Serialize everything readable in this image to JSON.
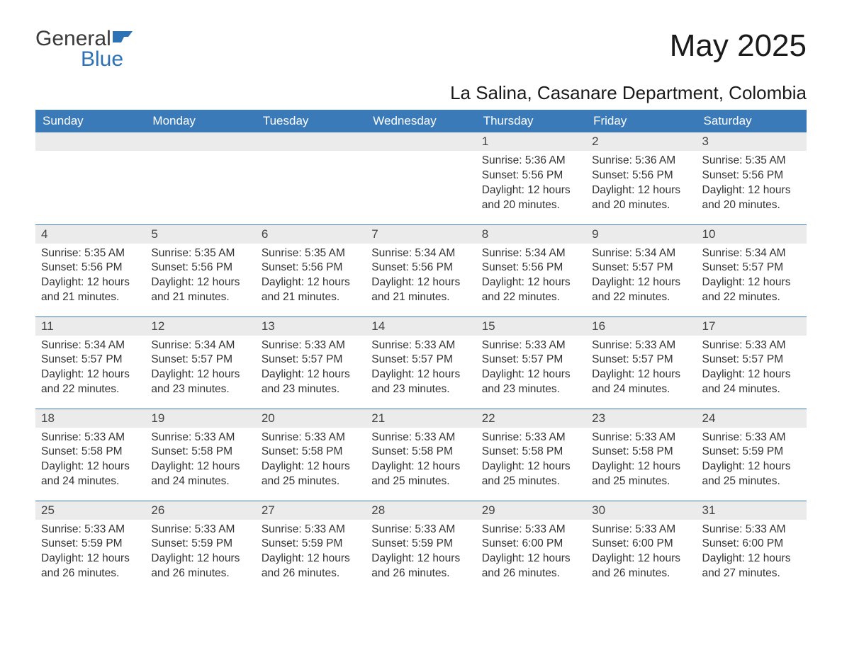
{
  "brand": {
    "word1": "General",
    "word2": "Blue"
  },
  "title": "May 2025",
  "location": "La Salina, Casanare Department, Colombia",
  "colors": {
    "header_bg": "#3a7ab8",
    "header_text": "#ffffff",
    "daynum_bg": "#ebebeb",
    "row_border": "#3a7ab8",
    "body_text": "#333333",
    "brand_gray": "#3a3a3a",
    "brand_blue": "#2d72b5",
    "background": "#ffffff"
  },
  "weekdays": [
    "Sunday",
    "Monday",
    "Tuesday",
    "Wednesday",
    "Thursday",
    "Friday",
    "Saturday"
  ],
  "weeks": [
    [
      null,
      null,
      null,
      null,
      {
        "n": "1",
        "sr": "5:36 AM",
        "ss": "5:56 PM",
        "dl": "12 hours and 20 minutes."
      },
      {
        "n": "2",
        "sr": "5:36 AM",
        "ss": "5:56 PM",
        "dl": "12 hours and 20 minutes."
      },
      {
        "n": "3",
        "sr": "5:35 AM",
        "ss": "5:56 PM",
        "dl": "12 hours and 20 minutes."
      }
    ],
    [
      {
        "n": "4",
        "sr": "5:35 AM",
        "ss": "5:56 PM",
        "dl": "12 hours and 21 minutes."
      },
      {
        "n": "5",
        "sr": "5:35 AM",
        "ss": "5:56 PM",
        "dl": "12 hours and 21 minutes."
      },
      {
        "n": "6",
        "sr": "5:35 AM",
        "ss": "5:56 PM",
        "dl": "12 hours and 21 minutes."
      },
      {
        "n": "7",
        "sr": "5:34 AM",
        "ss": "5:56 PM",
        "dl": "12 hours and 21 minutes."
      },
      {
        "n": "8",
        "sr": "5:34 AM",
        "ss": "5:56 PM",
        "dl": "12 hours and 22 minutes."
      },
      {
        "n": "9",
        "sr": "5:34 AM",
        "ss": "5:57 PM",
        "dl": "12 hours and 22 minutes."
      },
      {
        "n": "10",
        "sr": "5:34 AM",
        "ss": "5:57 PM",
        "dl": "12 hours and 22 minutes."
      }
    ],
    [
      {
        "n": "11",
        "sr": "5:34 AM",
        "ss": "5:57 PM",
        "dl": "12 hours and 22 minutes."
      },
      {
        "n": "12",
        "sr": "5:34 AM",
        "ss": "5:57 PM",
        "dl": "12 hours and 23 minutes."
      },
      {
        "n": "13",
        "sr": "5:33 AM",
        "ss": "5:57 PM",
        "dl": "12 hours and 23 minutes."
      },
      {
        "n": "14",
        "sr": "5:33 AM",
        "ss": "5:57 PM",
        "dl": "12 hours and 23 minutes."
      },
      {
        "n": "15",
        "sr": "5:33 AM",
        "ss": "5:57 PM",
        "dl": "12 hours and 23 minutes."
      },
      {
        "n": "16",
        "sr": "5:33 AM",
        "ss": "5:57 PM",
        "dl": "12 hours and 24 minutes."
      },
      {
        "n": "17",
        "sr": "5:33 AM",
        "ss": "5:57 PM",
        "dl": "12 hours and 24 minutes."
      }
    ],
    [
      {
        "n": "18",
        "sr": "5:33 AM",
        "ss": "5:58 PM",
        "dl": "12 hours and 24 minutes."
      },
      {
        "n": "19",
        "sr": "5:33 AM",
        "ss": "5:58 PM",
        "dl": "12 hours and 24 minutes."
      },
      {
        "n": "20",
        "sr": "5:33 AM",
        "ss": "5:58 PM",
        "dl": "12 hours and 25 minutes."
      },
      {
        "n": "21",
        "sr": "5:33 AM",
        "ss": "5:58 PM",
        "dl": "12 hours and 25 minutes."
      },
      {
        "n": "22",
        "sr": "5:33 AM",
        "ss": "5:58 PM",
        "dl": "12 hours and 25 minutes."
      },
      {
        "n": "23",
        "sr": "5:33 AM",
        "ss": "5:58 PM",
        "dl": "12 hours and 25 minutes."
      },
      {
        "n": "24",
        "sr": "5:33 AM",
        "ss": "5:59 PM",
        "dl": "12 hours and 25 minutes."
      }
    ],
    [
      {
        "n": "25",
        "sr": "5:33 AM",
        "ss": "5:59 PM",
        "dl": "12 hours and 26 minutes."
      },
      {
        "n": "26",
        "sr": "5:33 AM",
        "ss": "5:59 PM",
        "dl": "12 hours and 26 minutes."
      },
      {
        "n": "27",
        "sr": "5:33 AM",
        "ss": "5:59 PM",
        "dl": "12 hours and 26 minutes."
      },
      {
        "n": "28",
        "sr": "5:33 AM",
        "ss": "5:59 PM",
        "dl": "12 hours and 26 minutes."
      },
      {
        "n": "29",
        "sr": "5:33 AM",
        "ss": "6:00 PM",
        "dl": "12 hours and 26 minutes."
      },
      {
        "n": "30",
        "sr": "5:33 AM",
        "ss": "6:00 PM",
        "dl": "12 hours and 26 minutes."
      },
      {
        "n": "31",
        "sr": "5:33 AM",
        "ss": "6:00 PM",
        "dl": "12 hours and 27 minutes."
      }
    ]
  ],
  "labels": {
    "sunrise": "Sunrise: ",
    "sunset": "Sunset: ",
    "daylight": "Daylight: "
  }
}
